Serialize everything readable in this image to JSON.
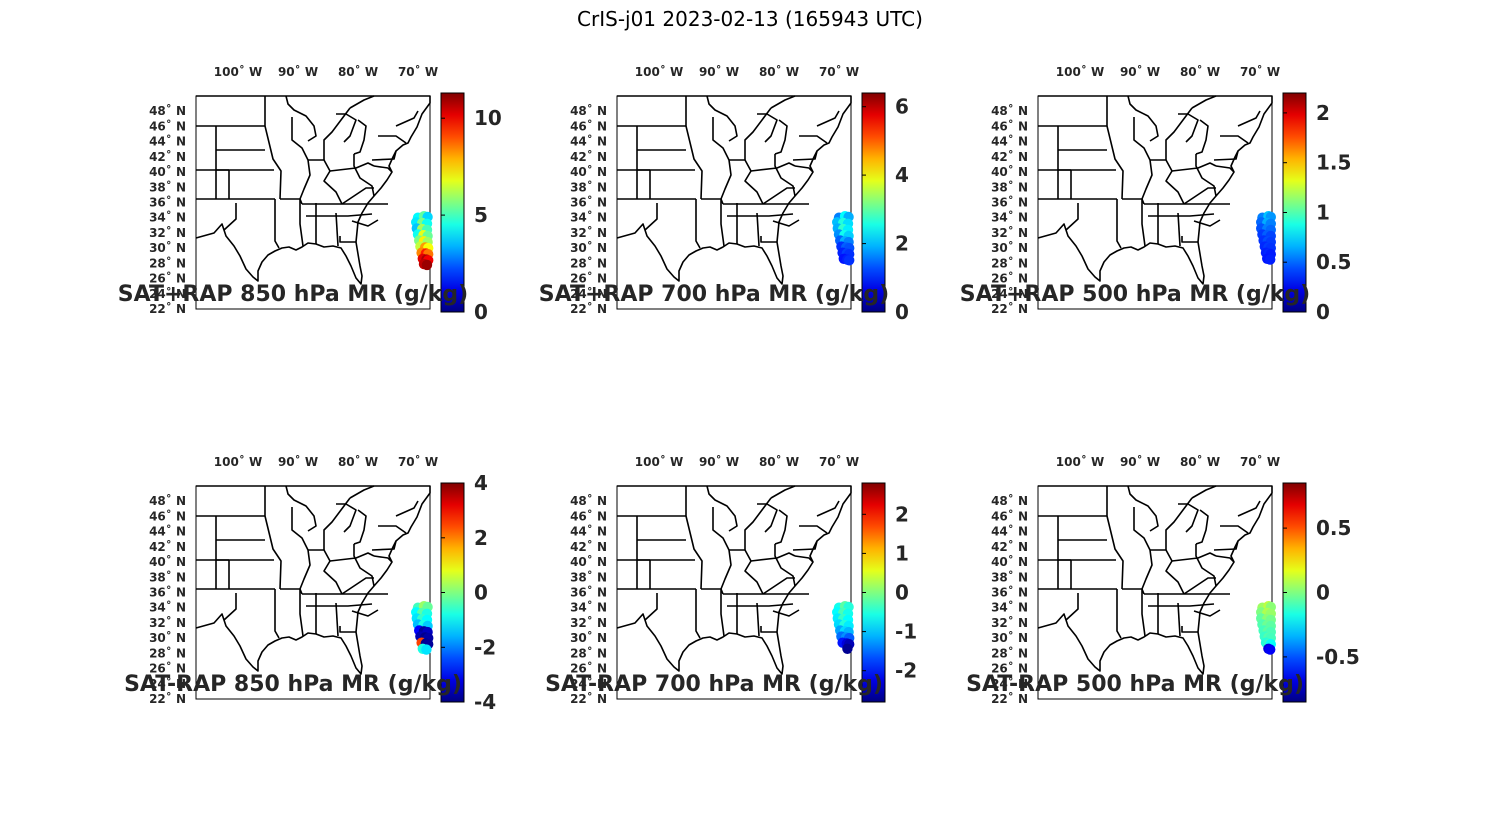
{
  "figure": {
    "title": "CrIS-j01 2023-02-13 (165943 UTC)"
  },
  "lon_ticks": [
    {
      "lon": -100,
      "label": "100˚ W"
    },
    {
      "lon": -90,
      "label": "90˚ W"
    },
    {
      "lon": -80,
      "label": "80˚ W"
    },
    {
      "lon": -70,
      "label": "70˚ W"
    }
  ],
  "lat_ticks": [
    {
      "lat": 48,
      "label": "48˚ N"
    },
    {
      "lat": 46,
      "label": "46˚ N"
    },
    {
      "lat": 44,
      "label": "44˚ N"
    },
    {
      "lat": 42,
      "label": "42˚ N"
    },
    {
      "lat": 40,
      "label": "40˚ N"
    },
    {
      "lat": 38,
      "label": "38˚ N"
    },
    {
      "lat": 36,
      "label": "36˚ N"
    },
    {
      "lat": 34,
      "label": "34˚ N"
    },
    {
      "lat": 32,
      "label": "32˚ N"
    },
    {
      "lat": 30,
      "label": "30˚ N"
    },
    {
      "lat": 28,
      "label": "28˚ N"
    },
    {
      "lat": 26,
      "label": "26˚ N"
    },
    {
      "lat": 24,
      "label": "24˚ N"
    },
    {
      "lat": 22,
      "label": "22˚ N"
    }
  ],
  "map_extent": {
    "lon": [
      -107,
      -68
    ],
    "lat": [
      22,
      50
    ]
  },
  "colormap": "jet",
  "chart_data": [
    {
      "type": "scatter-map",
      "title": "SAT+RAP 850 hPa MR (g/kg)",
      "clim": [
        0,
        11.3
      ],
      "colorbar_ticks": [
        {
          "value": 0,
          "label": "0"
        },
        {
          "value": 5,
          "label": "5"
        },
        {
          "value": 10,
          "label": "10"
        }
      ],
      "points": [
        [
          -70.0,
          34.0,
          4.2
        ],
        [
          -69.0,
          34.2,
          5.3
        ],
        [
          -68.4,
          34.1,
          3.8
        ],
        [
          -70.3,
          33.4,
          4.0
        ],
        [
          -69.3,
          33.3,
          5.6
        ],
        [
          -68.5,
          33.2,
          4.4
        ],
        [
          -70.2,
          32.6,
          3.6
        ],
        [
          -69.3,
          32.5,
          6.1
        ],
        [
          -68.5,
          32.4,
          5.0
        ],
        [
          -70.0,
          31.8,
          4.4
        ],
        [
          -69.1,
          31.7,
          6.8
        ],
        [
          -68.4,
          31.6,
          5.4
        ],
        [
          -69.8,
          31.0,
          5.6
        ],
        [
          -69.0,
          30.9,
          7.2
        ],
        [
          -68.4,
          30.8,
          6.0
        ],
        [
          -69.6,
          30.2,
          6.4
        ],
        [
          -68.8,
          30.1,
          8.2
        ],
        [
          -68.3,
          30.0,
          7.0
        ],
        [
          -69.4,
          29.4,
          8.4
        ],
        [
          -68.7,
          29.3,
          9.6
        ],
        [
          -68.3,
          29.2,
          8.6
        ],
        [
          -69.2,
          28.6,
          10.2
        ],
        [
          -68.6,
          28.5,
          10.8
        ],
        [
          -68.3,
          28.4,
          10.0
        ],
        [
          -69.0,
          27.9,
          10.6
        ],
        [
          -68.5,
          27.8,
          11.0
        ]
      ]
    },
    {
      "type": "scatter-map",
      "title": "SAT+RAP 700 hPa MR (g/kg)",
      "clim": [
        0,
        6.4
      ],
      "colorbar_ticks": [
        {
          "value": 0,
          "label": "0"
        },
        {
          "value": 2,
          "label": "2"
        },
        {
          "value": 4,
          "label": "4"
        },
        {
          "value": 6,
          "label": "6"
        }
      ],
      "points": [
        [
          -70.0,
          34.0,
          1.6
        ],
        [
          -69.0,
          34.2,
          2.4
        ],
        [
          -68.4,
          34.1,
          1.9
        ],
        [
          -70.3,
          33.4,
          2.0
        ],
        [
          -69.3,
          33.3,
          2.6
        ],
        [
          -68.5,
          33.2,
          2.2
        ],
        [
          -70.2,
          32.6,
          1.9
        ],
        [
          -69.3,
          32.5,
          2.7
        ],
        [
          -68.5,
          32.4,
          2.3
        ],
        [
          -70.0,
          31.8,
          1.7
        ],
        [
          -69.1,
          31.7,
          2.5
        ],
        [
          -68.4,
          31.6,
          2.1
        ],
        [
          -69.8,
          31.0,
          1.4
        ],
        [
          -69.0,
          30.9,
          1.9
        ],
        [
          -68.4,
          30.8,
          1.6
        ],
        [
          -69.6,
          30.2,
          1.1
        ],
        [
          -68.8,
          30.1,
          1.4
        ],
        [
          -68.3,
          30.0,
          1.3
        ],
        [
          -69.4,
          29.4,
          1.0
        ],
        [
          -68.7,
          29.3,
          1.2
        ],
        [
          -68.3,
          29.2,
          1.1
        ],
        [
          -69.2,
          28.6,
          0.9
        ],
        [
          -68.6,
          28.5,
          1.0
        ],
        [
          -68.3,
          28.4,
          1.1
        ]
      ]
    },
    {
      "type": "scatter-map",
      "title": "SAT+RAP 500 hPa MR (g/kg)",
      "clim": [
        0,
        2.2
      ],
      "colorbar_ticks": [
        {
          "value": 0,
          "label": "0"
        },
        {
          "value": 0.5,
          "label": "0.5"
        },
        {
          "value": 1,
          "label": "1"
        },
        {
          "value": 1.5,
          "label": "1.5"
        },
        {
          "value": 2,
          "label": "2"
        }
      ],
      "points": [
        [
          -69.6,
          34.0,
          0.55
        ],
        [
          -68.6,
          34.2,
          0.7
        ],
        [
          -68.2,
          34.1,
          0.6
        ],
        [
          -69.8,
          33.4,
          0.5
        ],
        [
          -68.8,
          33.3,
          0.65
        ],
        [
          -68.2,
          33.2,
          0.55
        ],
        [
          -69.8,
          32.6,
          0.45
        ],
        [
          -68.8,
          32.5,
          0.55
        ],
        [
          -68.2,
          32.4,
          0.5
        ],
        [
          -69.6,
          31.8,
          0.4
        ],
        [
          -68.8,
          31.7,
          0.48
        ],
        [
          -68.2,
          31.6,
          0.42
        ],
        [
          -69.4,
          31.0,
          0.38
        ],
        [
          -68.7,
          30.9,
          0.44
        ],
        [
          -68.2,
          30.8,
          0.4
        ],
        [
          -69.2,
          30.2,
          0.36
        ],
        [
          -68.6,
          30.1,
          0.4
        ],
        [
          -68.2,
          30.0,
          0.38
        ],
        [
          -69.0,
          29.4,
          0.34
        ],
        [
          -68.5,
          29.3,
          0.36
        ],
        [
          -68.2,
          29.2,
          0.33
        ],
        [
          -68.8,
          28.6,
          0.32
        ],
        [
          -68.3,
          28.5,
          0.34
        ]
      ]
    },
    {
      "type": "scatter-map",
      "title": "SAT-RAP 850 hPa MR (g/kg)",
      "clim": [
        -4,
        4
      ],
      "colorbar_ticks": [
        {
          "value": -4,
          "label": "-4"
        },
        {
          "value": -2,
          "label": "-2"
        },
        {
          "value": 0,
          "label": "0"
        },
        {
          "value": 2,
          "label": "2"
        },
        {
          "value": 4,
          "label": "4"
        }
      ],
      "points": [
        [
          -70.0,
          34.0,
          -0.5
        ],
        [
          -69.0,
          34.2,
          0.2
        ],
        [
          -68.4,
          34.1,
          -0.2
        ],
        [
          -70.3,
          33.4,
          -1.0
        ],
        [
          -69.3,
          33.3,
          -0.3
        ],
        [
          -68.5,
          33.2,
          -0.8
        ],
        [
          -70.2,
          32.6,
          -1.2
        ],
        [
          -69.3,
          32.5,
          -0.6
        ],
        [
          -68.5,
          32.4,
          -1.0
        ],
        [
          -70.0,
          31.8,
          -1.5
        ],
        [
          -69.1,
          31.7,
          -0.8
        ],
        [
          -68.4,
          31.6,
          -1.4
        ],
        [
          -69.8,
          31.0,
          -3.0
        ],
        [
          -69.0,
          30.9,
          -3.8
        ],
        [
          -68.4,
          30.8,
          -3.5
        ],
        [
          -69.6,
          30.2,
          -3.6
        ],
        [
          -68.8,
          30.1,
          -3.9
        ],
        [
          -68.3,
          30.0,
          -3.7
        ],
        [
          -69.4,
          29.4,
          2.5
        ],
        [
          -68.7,
          29.3,
          -3.9
        ],
        [
          -68.3,
          29.2,
          -3.8
        ],
        [
          -69.2,
          28.6,
          -0.8
        ],
        [
          -68.6,
          28.5,
          -1.2
        ]
      ]
    },
    {
      "type": "scatter-map",
      "title": "SAT-RAP 700 hPa MR (g/kg)",
      "clim": [
        -2.8,
        2.8
      ],
      "colorbar_ticks": [
        {
          "value": -2,
          "label": "-2"
        },
        {
          "value": -1,
          "label": "-1"
        },
        {
          "value": 0,
          "label": "0"
        },
        {
          "value": 1,
          "label": "1"
        },
        {
          "value": 2,
          "label": "2"
        }
      ],
      "points": [
        [
          -70.0,
          34.0,
          -0.6
        ],
        [
          -69.0,
          34.2,
          -0.2
        ],
        [
          -68.4,
          34.1,
          -0.5
        ],
        [
          -70.3,
          33.4,
          -0.7
        ],
        [
          -69.3,
          33.3,
          -0.3
        ],
        [
          -68.5,
          33.2,
          -0.6
        ],
        [
          -70.2,
          32.6,
          -0.8
        ],
        [
          -69.3,
          32.5,
          -0.4
        ],
        [
          -68.5,
          32.4,
          -0.7
        ],
        [
          -70.0,
          31.8,
          -0.9
        ],
        [
          -69.1,
          31.7,
          -0.5
        ],
        [
          -68.4,
          31.6,
          -0.8
        ],
        [
          -69.8,
          31.0,
          -1.2
        ],
        [
          -69.0,
          30.9,
          -0.9
        ],
        [
          -68.4,
          30.8,
          -1.1
        ],
        [
          -69.6,
          30.2,
          -1.5
        ],
        [
          -68.8,
          30.1,
          -1.3
        ],
        [
          -68.3,
          30.0,
          -1.6
        ],
        [
          -69.4,
          29.4,
          -2.0
        ],
        [
          -68.7,
          29.3,
          -2.3
        ],
        [
          -68.3,
          29.2,
          -2.5
        ],
        [
          -68.6,
          28.6,
          -2.7
        ]
      ]
    },
    {
      "type": "scatter-map",
      "title": "SAT-RAP 500 hPa MR (g/kg)",
      "clim": [
        -0.85,
        0.85
      ],
      "colorbar_ticks": [
        {
          "value": -0.5,
          "label": "-0.5"
        },
        {
          "value": 0,
          "label": "0"
        },
        {
          "value": 0.5,
          "label": "0.5"
        }
      ],
      "points": [
        [
          -69.6,
          34.0,
          0.05
        ],
        [
          -68.6,
          34.2,
          0.1
        ],
        [
          -68.2,
          34.1,
          0.02
        ],
        [
          -69.8,
          33.4,
          0.0
        ],
        [
          -68.8,
          33.3,
          0.08
        ],
        [
          -68.2,
          33.2,
          0.04
        ],
        [
          -69.8,
          32.6,
          -0.05
        ],
        [
          -68.8,
          32.5,
          0.02
        ],
        [
          -68.2,
          32.4,
          -0.02
        ],
        [
          -69.6,
          31.8,
          -0.08
        ],
        [
          -68.8,
          31.7,
          -0.03
        ],
        [
          -68.2,
          31.6,
          -0.06
        ],
        [
          -69.4,
          31.0,
          -0.1
        ],
        [
          -68.7,
          30.9,
          -0.06
        ],
        [
          -68.2,
          30.8,
          -0.09
        ],
        [
          -69.2,
          30.2,
          -0.12
        ],
        [
          -68.6,
          30.1,
          -0.08
        ],
        [
          -68.2,
          30.0,
          -0.1
        ],
        [
          -69.0,
          29.4,
          -0.15
        ],
        [
          -68.5,
          29.3,
          -0.12
        ],
        [
          -68.2,
          29.2,
          -0.2
        ],
        [
          -68.6,
          28.6,
          -0.7
        ],
        [
          -68.3,
          28.5,
          -0.65
        ]
      ]
    }
  ]
}
